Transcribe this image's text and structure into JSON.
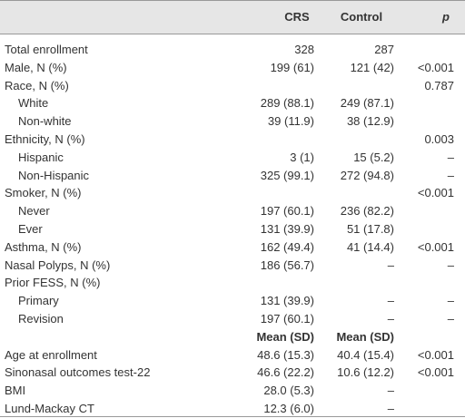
{
  "table": {
    "header": [
      "CRS",
      "Control",
      "p"
    ],
    "rows": [
      {
        "label": "Total enrollment",
        "values": [
          "328",
          "287",
          null
        ]
      },
      {
        "label": "Male, N (%)",
        "values": [
          "199 (61)",
          "121 (42)",
          "<0.001"
        ]
      },
      {
        "label": "Race, N (%)",
        "values": [
          null,
          null,
          "0.787"
        ],
        "sub": [
          {
            "label": "White",
            "values": [
              "289 (88.1)",
              "249 (87.1)",
              null
            ]
          },
          {
            "label": "Non-white",
            "values": [
              "39 (11.9)",
              "38 (12.9)",
              null
            ]
          }
        ]
      },
      {
        "label": "Ethnicity, N (%)",
        "values": [
          null,
          null,
          "0.003"
        ],
        "sub": [
          {
            "label": "Hispanic",
            "values": [
              "3 (1)",
              "15 (5.2)",
              "–"
            ]
          },
          {
            "label": "Non-Hispanic",
            "values": [
              "325 (99.1)",
              "272 (94.8)",
              "–"
            ]
          }
        ]
      },
      {
        "label": "Smoker, N (%)",
        "values": [
          null,
          null,
          "<0.001"
        ],
        "sub": [
          {
            "label": "Never",
            "values": [
              "197 (60.1)",
              "236 (82.2)",
              null
            ]
          },
          {
            "label": "Ever",
            "values": [
              "131 (39.9)",
              "51 (17.8)",
              null
            ]
          }
        ]
      },
      {
        "label": "Asthma, N (%)",
        "values": [
          "162 (49.4)",
          "41 (14.4)",
          "<0.001"
        ]
      },
      {
        "label": "Nasal Polyps, N (%)",
        "values": [
          "186 (56.7)",
          "–",
          "–"
        ]
      },
      {
        "label": "Prior FESS, N (%)",
        "values": [
          null,
          null,
          null
        ],
        "sub": [
          {
            "label": "Primary",
            "values": [
              "131 (39.9)",
              "–",
              "–"
            ]
          },
          {
            "label": "Revision",
            "values": [
              "197 (60.1)",
              "–",
              "–"
            ]
          }
        ]
      }
    ],
    "mean_header": [
      "Mean (SD)",
      "Mean (SD)"
    ],
    "continuous_rows": [
      {
        "label": "Age at enrollment",
        "values": [
          "48.6 (15.3)",
          "40.4 (15.4)",
          "<0.001"
        ]
      },
      {
        "label": "Sinonasal outcomes test-22",
        "values": [
          "46.6 (22.2)",
          "10.6 (12.2)",
          "<0.001"
        ]
      },
      {
        "label": "BMI",
        "values": [
          "28.0 (5.3)",
          "–",
          null
        ]
      },
      {
        "label": "Lund-Mackay CT",
        "values": [
          "12.3 (6.0)",
          "–",
          null
        ]
      }
    ]
  }
}
